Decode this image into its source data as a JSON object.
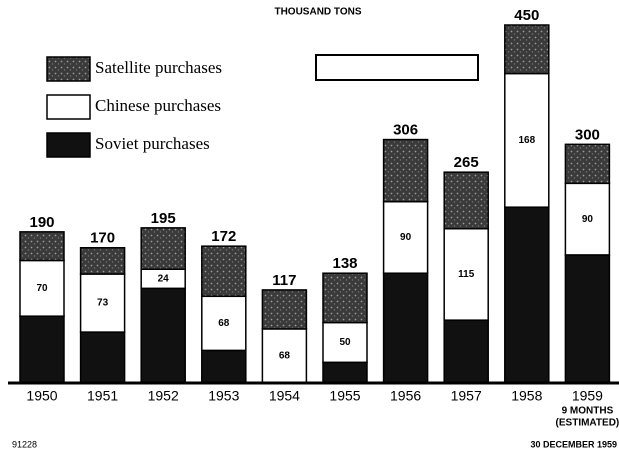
{
  "chart_data": {
    "type": "stacked_bar",
    "title": "THOUSAND TONS",
    "categories": [
      "1950",
      "1951",
      "1952",
      "1953",
      "1954",
      "1955",
      "1956",
      "1957",
      "1958",
      "1959"
    ],
    "category_note": [
      "9 MONTHS",
      "(ESTIMATED)"
    ],
    "series": [
      {
        "name": "Satellite purchases",
        "color": "#4a4a4a",
        "values": [
          36,
          33,
          52,
          63,
          49,
          62,
          78,
          71,
          61,
          49
        ]
      },
      {
        "name": "Chinese purchases",
        "color": "#ffffff",
        "values": [
          70,
          73,
          24,
          68,
          68,
          50,
          90,
          115,
          168,
          90
        ]
      },
      {
        "name": "Soviet purchases",
        "color": "#111111",
        "values": [
          84,
          64,
          119,
          41,
          0,
          26,
          138,
          79,
          221,
          161
        ]
      }
    ],
    "totals": [
      190,
      170,
      195,
      172,
      117,
      138,
      306,
      265,
      450,
      300
    ],
    "ylim": [
      0,
      450
    ],
    "footer_left": "91228",
    "footer_right": "30 DECEMBER 1959"
  }
}
